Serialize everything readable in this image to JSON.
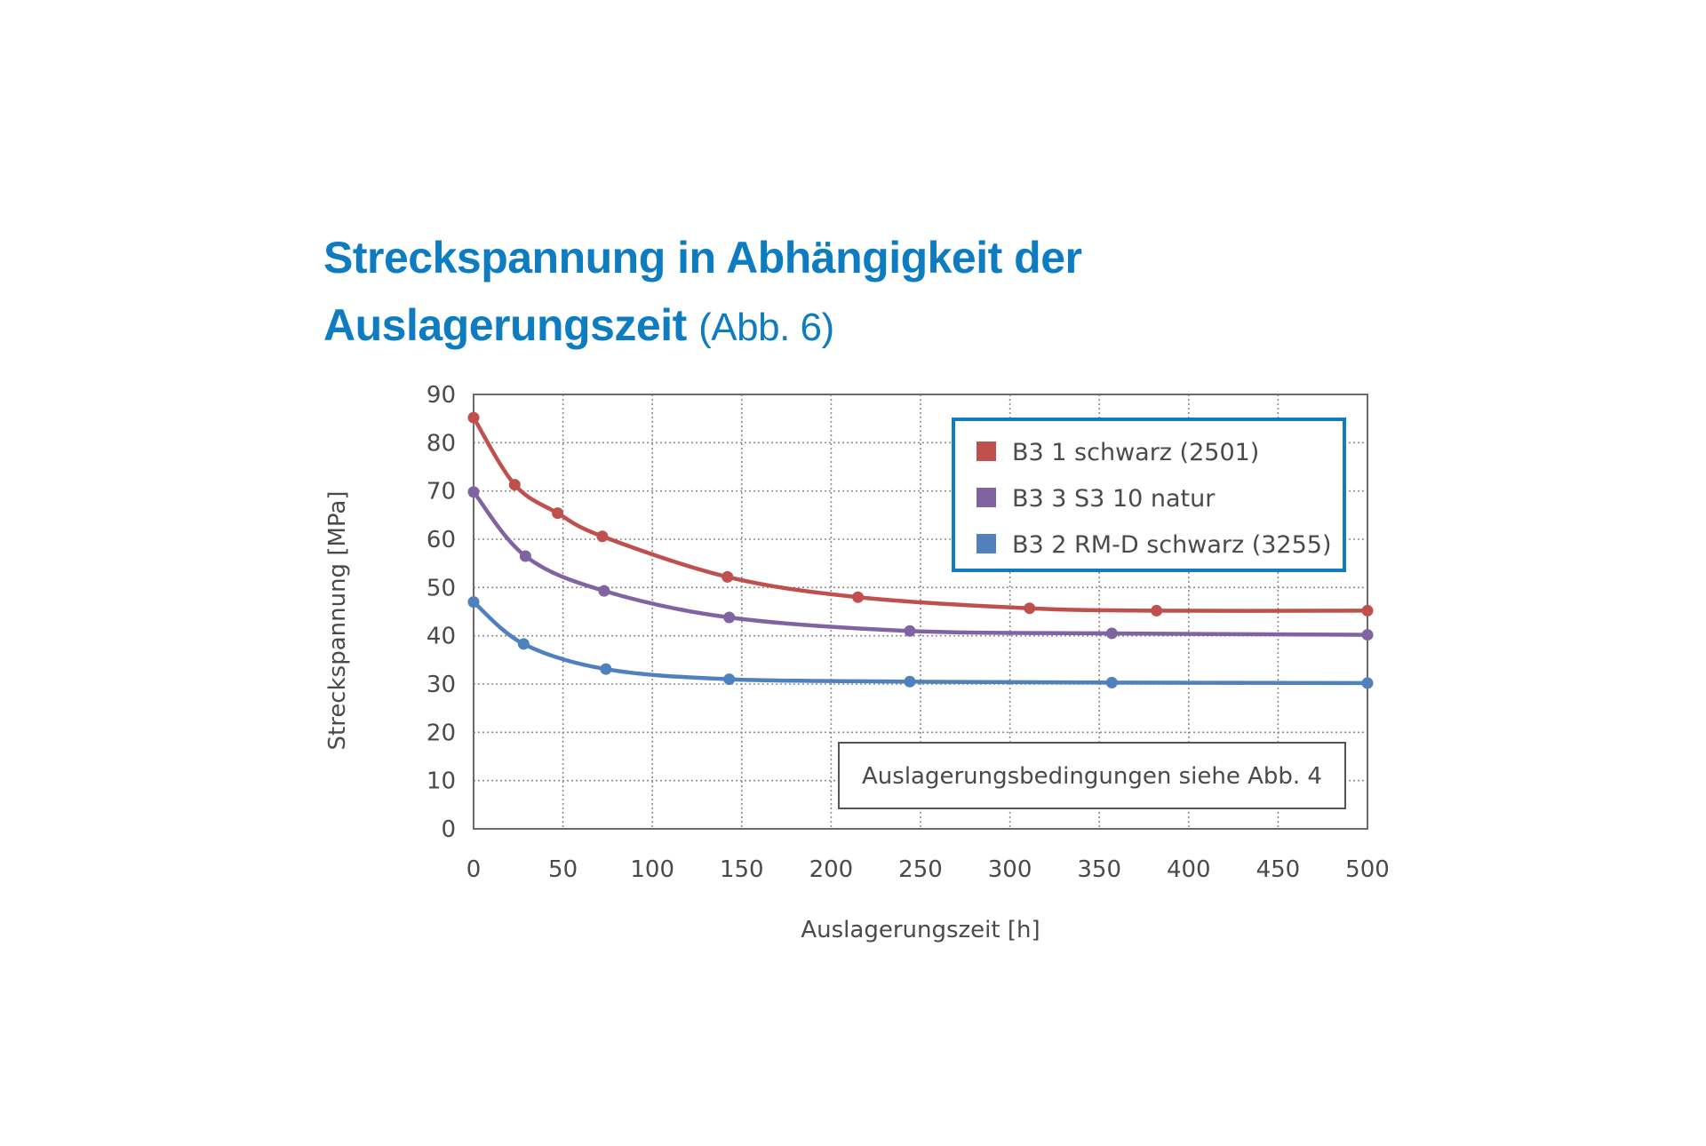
{
  "title": {
    "line1": "Streckspannung in Abhängigkeit der",
    "line2_bold": "Auslagerungszeit",
    "line2_normal": "(Abb. 6)"
  },
  "colors": {
    "title": "#0e7cc1",
    "legend_border": "#0e7cc1",
    "series_red": "#c0504d",
    "series_purple": "#8064a2",
    "series_blue": "#4f81bd",
    "axis": "#6b6b6b",
    "grid": "#8c8c8c"
  },
  "chart_data": {
    "type": "line",
    "title": "Streckspannung in Abhängigkeit der Auslagerungszeit (Abb. 6)",
    "xlabel": "Auslagerungszeit [h]",
    "ylabel": "Streckspannung [MPa]",
    "xlim": [
      0,
      500
    ],
    "ylim": [
      0,
      90
    ],
    "xticks": [
      0,
      50,
      100,
      150,
      200,
      250,
      300,
      350,
      400,
      450,
      500
    ],
    "yticks": [
      0,
      10,
      20,
      30,
      40,
      50,
      60,
      70,
      80,
      90
    ],
    "grid": true,
    "grid_style": "dotted",
    "legend_position": "upper right (inside plot)",
    "smoothed": true,
    "series": [
      {
        "name": "B3 1 schwarz (2501)",
        "color": "#c0504d",
        "x": [
          0,
          23,
          47,
          72,
          142,
          215,
          311,
          382,
          500
        ],
        "y": [
          85.2,
          71.3,
          65.4,
          60.6,
          52.2,
          48.0,
          45.7,
          45.2,
          45.2
        ]
      },
      {
        "name": "B3 3 S3 10 natur",
        "color": "#8064a2",
        "x": [
          0,
          29,
          73,
          143,
          244,
          357,
          500
        ],
        "y": [
          69.8,
          56.5,
          49.3,
          43.8,
          41.0,
          40.5,
          40.2
        ]
      },
      {
        "name": "B3 2 RM-D schwarz (3255)",
        "color": "#4f81bd",
        "x": [
          0,
          28,
          74,
          143,
          244,
          357,
          500
        ],
        "y": [
          47.0,
          38.3,
          33.1,
          31.0,
          30.5,
          30.3,
          30.2
        ]
      }
    ],
    "annotations": [
      "Auslagerungsbedingungen siehe Abb. 4"
    ]
  },
  "note": "Auslagerungsbedingungen siehe Abb. 4"
}
